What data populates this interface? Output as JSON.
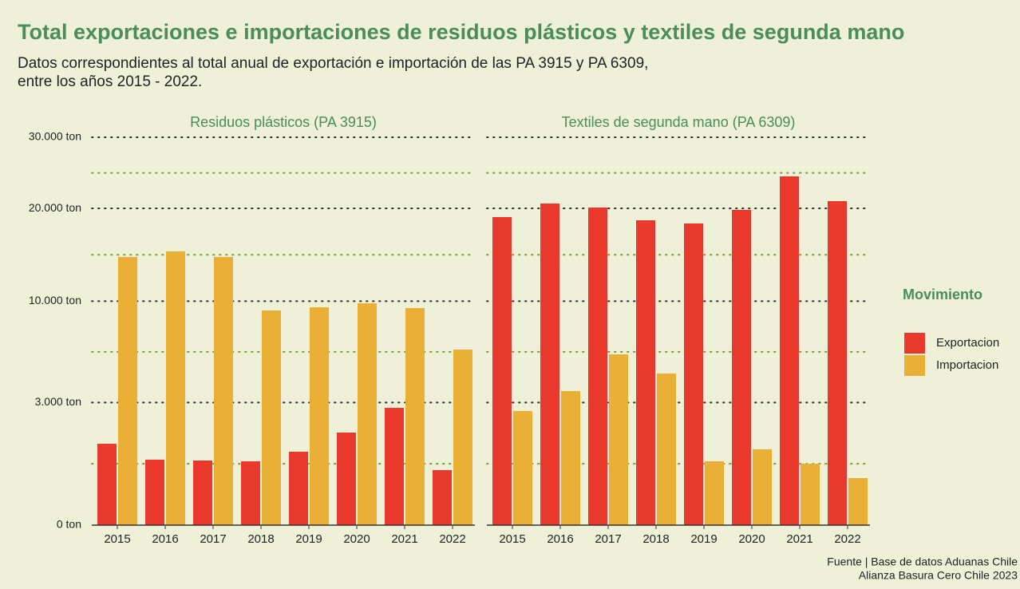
{
  "chart_data": {
    "type": "bar",
    "title": "Total exportaciones e importaciones de residuos plásticos y textiles de segunda mano",
    "subtitle": [
      "Datos correspondientes al total anual de exportación e importación de las PA 3915 y PA 6309,",
      "entre los años 2015 - 2022."
    ],
    "legend_title": "Movimiento",
    "source": [
      "Fuente | Base de datos Aduanas Chile",
      "Alianza Basura Cero Chile 2023"
    ],
    "yscale": "sqrt",
    "ylim": [
      0,
      30000
    ],
    "yticks": [
      {
        "value": 0,
        "label": "0 ton"
      },
      {
        "value": 3000,
        "label": "3.000 ton"
      },
      {
        "value": 10000,
        "label": "10.000 ton"
      },
      {
        "value": 20000,
        "label": "20.000 ton"
      },
      {
        "value": 30000,
        "label": "30.000 ton"
      }
    ],
    "grid": true,
    "categories": [
      "2015",
      "2016",
      "2017",
      "2018",
      "2019",
      "2020",
      "2021",
      "2022"
    ],
    "series": [
      {
        "name": "Exportacion",
        "color": "#e8392c"
      },
      {
        "name": "Importacion",
        "color": "#e9b035"
      }
    ],
    "panels": [
      {
        "title": "Residuos plásticos (PA 3915)",
        "series": [
          {
            "values": [
              1321,
              854,
              833,
              813,
              1075,
              1709,
              2744,
              605
            ]
          },
          {
            "values": [
              14339,
              14942,
              14339,
              9190,
              9466,
              9816,
              9397,
              6147
            ]
          }
        ]
      },
      {
        "title": "Textiles de segunda mano (PA 6309)",
        "series": [
          {
            "values": [
              18924,
              20627,
              20118,
              18533,
              18148,
              19817,
              24256,
              20935
            ]
          },
          {
            "values": [
              2597,
              3585,
              5817,
              4585,
              813,
              1146,
              753,
              442
            ]
          }
        ]
      }
    ]
  }
}
